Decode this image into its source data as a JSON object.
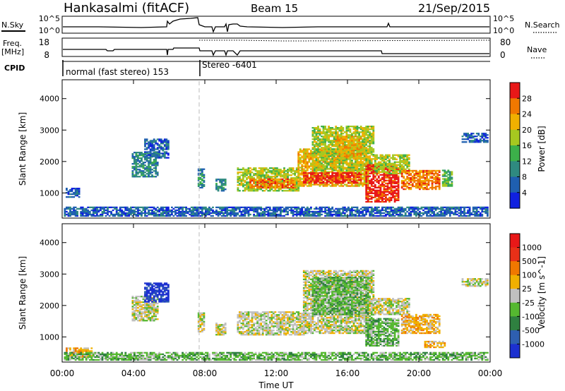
{
  "header": {
    "station": "Hankasalmi (fitACF)",
    "beam": "Beam 15",
    "date": "21/Sep/2015"
  },
  "top_panels": {
    "nsky_label": "N.Sky",
    "nsky_ticks": [
      "10^5",
      "10^0"
    ],
    "nsearch_label": "N.Search",
    "nsearch_ticks": [
      "10^5",
      "10^0"
    ],
    "freq_label": "Freq.",
    "freq_unit": "[MHz]",
    "freq_ticks": [
      "18",
      "8"
    ],
    "nave_label": "Nave",
    "nave_ticks": [
      "80",
      "0"
    ],
    "cpid_label": "CPID",
    "cpid_segments": [
      "normal (fast stereo) 153",
      "Stereo -6401"
    ]
  },
  "chart_data": [
    {
      "type": "heatmap",
      "panel": "power",
      "ylabel": "Slant Range [km]",
      "xlabel": "Time UT",
      "x_ticks": [
        "00:00",
        "04:00",
        "08:00",
        "12:00",
        "16:00",
        "20:00",
        "00:00"
      ],
      "y_ticks": [
        "1000",
        "2000",
        "3000",
        "4000"
      ],
      "ylim": [
        200,
        4600
      ],
      "xlim_hours": [
        0,
        24
      ],
      "colorbar": {
        "label": "Power [dB]",
        "ticks": [
          "28",
          "24",
          "20",
          "16",
          "12",
          "8",
          "4"
        ],
        "colors": [
          "#1020e0",
          "#1f5fb0",
          "#2f8a80",
          "#3cb04a",
          "#a6c820",
          "#f0b000",
          "#f07800",
          "#e81818"
        ]
      },
      "regions": [
        {
          "t0": 0.2,
          "t1": 0.9,
          "r0": 850,
          "r1": 1150,
          "level": 1
        },
        {
          "t0": 3.9,
          "t1": 5.3,
          "r0": 1500,
          "r1": 2300,
          "level": 2
        },
        {
          "t0": 4.6,
          "t1": 5.9,
          "r0": 2100,
          "r1": 2700,
          "level": 1
        },
        {
          "t0": 7.6,
          "t1": 7.9,
          "r0": 1150,
          "r1": 1750,
          "level": 2
        },
        {
          "t0": 8.6,
          "t1": 9.1,
          "r0": 1050,
          "r1": 1450,
          "level": 2
        },
        {
          "t0": 9.8,
          "t1": 13.2,
          "r0": 1050,
          "r1": 1800,
          "level": 4
        },
        {
          "t0": 10.5,
          "t1": 13.0,
          "r0": 1150,
          "r1": 1450,
          "level": 6
        },
        {
          "t0": 13.2,
          "t1": 17.2,
          "r0": 1200,
          "r1": 2400,
          "level": 5
        },
        {
          "t0": 13.5,
          "t1": 16.8,
          "r0": 1300,
          "r1": 1650,
          "level": 7
        },
        {
          "t0": 14.0,
          "t1": 17.5,
          "r0": 1700,
          "r1": 3100,
          "level": 4
        },
        {
          "t0": 15.3,
          "t1": 16.8,
          "r0": 2100,
          "r1": 2800,
          "level": 5
        },
        {
          "t0": 17.0,
          "t1": 18.9,
          "r0": 700,
          "r1": 1900,
          "level": 7
        },
        {
          "t0": 17.5,
          "t1": 19.5,
          "r0": 1600,
          "r1": 2200,
          "level": 4
        },
        {
          "t0": 19.0,
          "t1": 21.2,
          "r0": 1100,
          "r1": 1700,
          "level": 6
        },
        {
          "t0": 21.3,
          "t1": 21.9,
          "r0": 1200,
          "r1": 1700,
          "level": 3
        },
        {
          "t0": 22.4,
          "t1": 23.9,
          "r0": 2600,
          "r1": 2900,
          "level": 1
        },
        {
          "t0": 0.1,
          "t1": 23.9,
          "r0": 250,
          "r1": 550,
          "level": 1
        }
      ]
    },
    {
      "type": "heatmap",
      "panel": "velocity",
      "ylabel": "Slant Range [km]",
      "xlabel": "Time UT",
      "x_ticks": [
        "00:00",
        "04:00",
        "08:00",
        "12:00",
        "16:00",
        "20:00",
        "00:00"
      ],
      "y_ticks": [
        "1000",
        "2000",
        "3000",
        "4000"
      ],
      "ylim": [
        200,
        4600
      ],
      "xlim_hours": [
        0,
        24
      ],
      "colorbar": {
        "label": "Velocity [m s^-1]",
        "ticks": [
          "1000",
          "500",
          "100",
          "25",
          "-25",
          "-100",
          "-500",
          "-1000"
        ],
        "colors": [
          "#1c30d0",
          "#2e5fb0",
          "#2f8040",
          "#55b830",
          "#c0c0c0",
          "#f0b000",
          "#f07800",
          "#e83018",
          "#e81818"
        ]
      },
      "regions": [
        {
          "t0": 0.2,
          "t1": 1.8,
          "r0": 350,
          "r1": 650,
          "level": 5
        },
        {
          "t0": 0.1,
          "t1": 23.9,
          "r0": 250,
          "r1": 500,
          "level": 3
        },
        {
          "t0": 3.9,
          "t1": 5.3,
          "r0": 1500,
          "r1": 2300,
          "level": 4
        },
        {
          "t0": 4.6,
          "t1": 5.9,
          "r0": 2100,
          "r1": 2700,
          "level": 0
        },
        {
          "t0": 7.6,
          "t1": 7.9,
          "r0": 1150,
          "r1": 1750,
          "level": 4
        },
        {
          "t0": 8.6,
          "t1": 9.1,
          "r0": 1050,
          "r1": 1450,
          "level": 4
        },
        {
          "t0": 9.8,
          "t1": 13.5,
          "r0": 1050,
          "r1": 1800,
          "level": 4
        },
        {
          "t0": 13.5,
          "t1": 17.5,
          "r0": 1100,
          "r1": 3100,
          "level": 4
        },
        {
          "t0": 14.0,
          "t1": 17.2,
          "r0": 1700,
          "r1": 2900,
          "level": 3
        },
        {
          "t0": 17.0,
          "t1": 18.9,
          "r0": 700,
          "r1": 1600,
          "level": 3
        },
        {
          "t0": 17.5,
          "t1": 19.5,
          "r0": 1700,
          "r1": 2200,
          "level": 4
        },
        {
          "t0": 19.0,
          "t1": 21.2,
          "r0": 1100,
          "r1": 1700,
          "level": 5
        },
        {
          "t0": 20.3,
          "t1": 21.5,
          "r0": 650,
          "r1": 850,
          "level": 5
        },
        {
          "t0": 22.4,
          "t1": 23.9,
          "r0": 2600,
          "r1": 2850,
          "level": 4
        }
      ]
    }
  ]
}
